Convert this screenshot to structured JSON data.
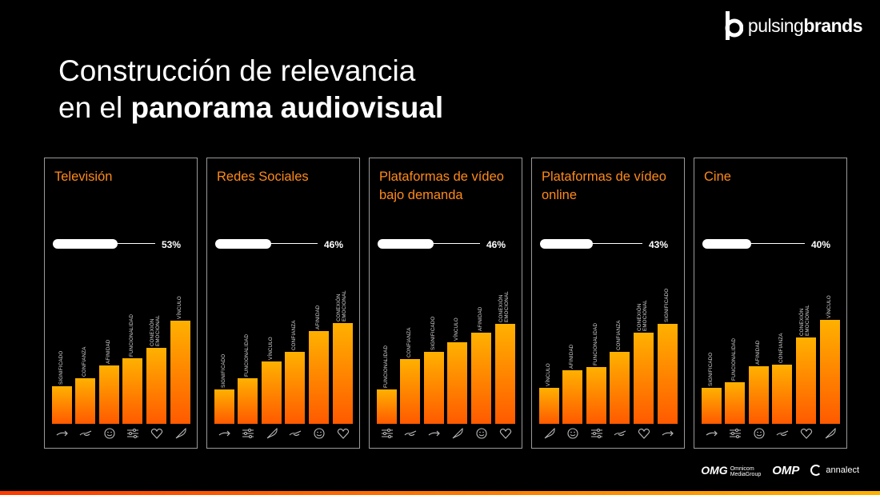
{
  "brand": {
    "name_light": "pulsing",
    "name_bold": "brands"
  },
  "title": {
    "line1": "Construcción de relevancia",
    "line2_prefix": "en el ",
    "line2_bold": "panorama audiovisual"
  },
  "colors": {
    "accent": "#ff8a1a",
    "bar_top": "#ffb100",
    "bar_bottom": "#ff5a00"
  },
  "chart_data": [
    {
      "type": "bar",
      "title": "Televisión",
      "overall": {
        "value": 53,
        "label": "53%"
      },
      "categories": [
        "SIGNIFICADO",
        "CONFIANZA",
        "AFINIDAD",
        "FUNCIONALIDAD",
        "CONEXIÓN\nEMOCIONAL",
        "VÍNCULO"
      ],
      "icons": [
        "arrow-icon",
        "hand-icon",
        "smiley-icon",
        "sliders-icon",
        "heart-icon",
        "feather-icon"
      ],
      "values": [
        47,
        57,
        73,
        82,
        95,
        129
      ]
    },
    {
      "type": "bar",
      "title": "Redes Sociales",
      "overall": {
        "value": 46,
        "label": "46%"
      },
      "categories": [
        "SIGNIFICADO",
        "FUNCIONALIDAD",
        "VÍNCULO",
        "CONFIANZA",
        "AFINIDAD",
        "CONEXIÓN\nEMOCIONAL"
      ],
      "icons": [
        "arrow-icon",
        "sliders-icon",
        "feather-icon",
        "hand-icon",
        "smiley-icon",
        "heart-icon"
      ],
      "values": [
        43,
        57,
        78,
        90,
        116,
        126
      ]
    },
    {
      "type": "bar",
      "title": "Plataformas de vídeo bajo demanda",
      "overall": {
        "value": 46,
        "label": "46%"
      },
      "categories": [
        "FUNCIONALIDAD",
        "CONFIANZA",
        "SIGNIFICADO",
        "VÍNCULO",
        "AFINIDAD",
        "CONEXIÓN\nEMOCIONAL"
      ],
      "icons": [
        "sliders-icon",
        "hand-icon",
        "arrow-icon",
        "feather-icon",
        "smiley-icon",
        "heart-icon"
      ],
      "values": [
        43,
        81,
        90,
        102,
        114,
        125
      ]
    },
    {
      "type": "bar",
      "title": "Plataformas de vídeo online",
      "overall": {
        "value": 43,
        "label": "43%"
      },
      "categories": [
        "VÍNCULO",
        "AFINIDAD",
        "FUNCIONALIDAD",
        "CONFIANZA",
        "CONEXIÓN\nEMOCIONAL",
        "SIGNIFICADO"
      ],
      "icons": [
        "feather-icon",
        "smiley-icon",
        "sliders-icon",
        "hand-icon",
        "heart-icon",
        "arrow-icon"
      ],
      "values": [
        45,
        67,
        71,
        90,
        114,
        125
      ]
    },
    {
      "type": "bar",
      "title": "Cine",
      "overall": {
        "value": 40,
        "label": "40%"
      },
      "categories": [
        "SIGNIFICADO",
        "FUNCIONALIDAD",
        "AFINIDAD",
        "CONFIANZA",
        "CONEXIÓN\nEMOCIONAL",
        "VÍNCULO"
      ],
      "icons": [
        "arrow-icon",
        "sliders-icon",
        "smiley-icon",
        "hand-icon",
        "heart-icon",
        "feather-icon"
      ],
      "values": [
        45,
        52,
        72,
        74,
        108,
        130
      ]
    }
  ],
  "partners": {
    "omg": "OMG",
    "omg_sub1": "Omnicom",
    "omg_sub2": "MediaGroup",
    "omp": "OMP",
    "annalect": "annalect"
  }
}
